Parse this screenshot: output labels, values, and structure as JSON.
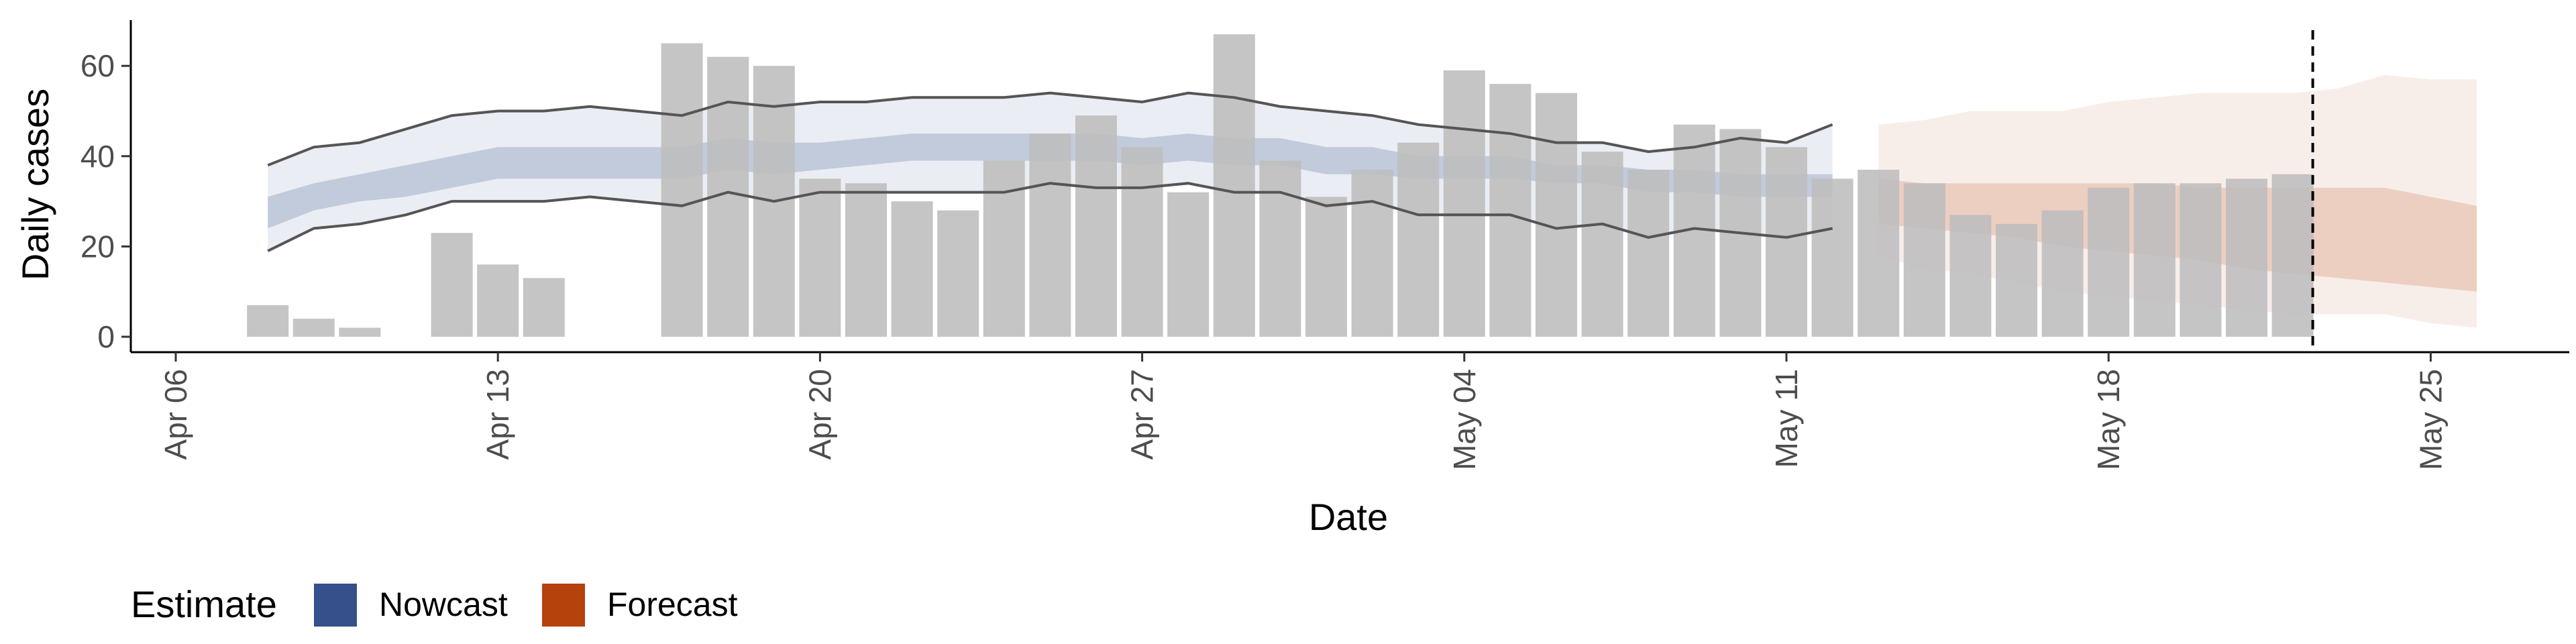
{
  "chart_data": {
    "type": "bar",
    "xlabel": "Date",
    "ylabel": "Daily cases",
    "x_ticks": [
      "Apr 06",
      "Apr 13",
      "Apr 20",
      "Apr 27",
      "May 04",
      "May 11",
      "May 18",
      "May 25"
    ],
    "y_ticks": [
      "0",
      "20",
      "40",
      "60"
    ],
    "ylim": [
      -3,
      70
    ],
    "xlim": [
      "2020-04-06",
      "2020-05-29"
    ],
    "forecast_cutoff_date": "2020-05-22",
    "legend": {
      "title": "Estimate",
      "position": "bottom-left",
      "items": [
        {
          "label": "Nowcast",
          "color": "#35508a"
        },
        {
          "label": "Forecast",
          "color": "#b5410c"
        }
      ]
    },
    "colors": {
      "bars": "#bdbdbd",
      "nowcast": "#35508a",
      "forecast": "#b5410c",
      "ci_lines": "#555555"
    },
    "bars": {
      "dates": [
        "2020-04-08",
        "2020-04-09",
        "2020-04-10",
        "2020-04-12",
        "2020-04-13",
        "2020-04-14",
        "2020-04-17",
        "2020-04-18",
        "2020-04-19",
        "2020-04-20",
        "2020-04-21",
        "2020-04-22",
        "2020-04-23",
        "2020-04-24",
        "2020-04-25",
        "2020-04-26",
        "2020-04-27",
        "2020-04-28",
        "2020-04-29",
        "2020-04-30",
        "2020-05-01",
        "2020-05-02",
        "2020-05-03",
        "2020-05-04",
        "2020-05-05",
        "2020-05-06",
        "2020-05-07",
        "2020-05-08",
        "2020-05-09",
        "2020-05-10",
        "2020-05-11",
        "2020-05-12",
        "2020-05-13",
        "2020-05-14",
        "2020-05-15",
        "2020-05-16",
        "2020-05-17",
        "2020-05-18",
        "2020-05-19",
        "2020-05-20",
        "2020-05-21",
        "2020-05-22"
      ],
      "values": [
        7,
        4,
        2,
        23,
        16,
        13,
        65,
        62,
        60,
        35,
        34,
        30,
        28,
        39,
        45,
        49,
        42,
        32,
        67,
        39,
        31,
        37,
        43,
        59,
        56,
        54,
        41,
        37,
        47,
        46,
        42,
        35,
        37,
        34,
        27,
        25,
        28,
        33,
        34,
        34,
        35,
        36
      ]
    },
    "nowcast": {
      "dates": [
        "2020-04-08",
        "2020-04-09",
        "2020-04-10",
        "2020-04-11",
        "2020-04-12",
        "2020-04-13",
        "2020-04-14",
        "2020-04-15",
        "2020-04-16",
        "2020-04-17",
        "2020-04-18",
        "2020-04-19",
        "2020-04-20",
        "2020-04-21",
        "2020-04-22",
        "2020-04-23",
        "2020-04-24",
        "2020-04-25",
        "2020-04-26",
        "2020-04-27",
        "2020-04-28",
        "2020-04-29",
        "2020-04-30",
        "2020-05-01",
        "2020-05-02",
        "2020-05-03",
        "2020-05-04",
        "2020-05-05",
        "2020-05-06",
        "2020-05-07",
        "2020-05-08",
        "2020-05-09",
        "2020-05-10",
        "2020-05-11",
        "2020-05-12"
      ],
      "lower90": [
        19,
        24,
        25,
        27,
        30,
        30,
        30,
        31,
        30,
        29,
        32,
        30,
        32,
        32,
        32,
        32,
        32,
        34,
        33,
        33,
        34,
        32,
        32,
        29,
        30,
        27,
        27,
        27,
        24,
        25,
        22,
        24,
        23,
        22,
        24
      ],
      "lower50": [
        24,
        28,
        30,
        31,
        33,
        35,
        35,
        35,
        35,
        35,
        37,
        36,
        37,
        38,
        39,
        39,
        39,
        39,
        39,
        38,
        39,
        38,
        38,
        36,
        36,
        35,
        35,
        35,
        34,
        34,
        32,
        32,
        31,
        31,
        31
      ],
      "upper50": [
        31,
        34,
        36,
        38,
        40,
        42,
        42,
        42,
        42,
        42,
        44,
        43,
        43,
        44,
        45,
        45,
        45,
        45,
        45,
        44,
        45,
        44,
        44,
        42,
        42,
        40,
        40,
        40,
        38,
        38,
        37,
        37,
        36,
        36,
        36
      ],
      "upper90": [
        38,
        42,
        43,
        46,
        49,
        50,
        50,
        51,
        50,
        49,
        52,
        51,
        52,
        52,
        53,
        53,
        53,
        54,
        53,
        52,
        54,
        53,
        51,
        50,
        49,
        47,
        46,
        45,
        43,
        43,
        41,
        42,
        44,
        43,
        47
      ]
    },
    "forecast": {
      "dates": [
        "2020-05-13",
        "2020-05-14",
        "2020-05-15",
        "2020-05-16",
        "2020-05-17",
        "2020-05-18",
        "2020-05-19",
        "2020-05-20",
        "2020-05-21",
        "2020-05-22",
        "2020-05-23",
        "2020-05-24",
        "2020-05-25",
        "2020-05-26"
      ],
      "lower90": [
        18,
        15,
        14,
        12,
        10,
        9,
        8,
        7,
        6,
        5,
        5,
        5,
        3,
        2
      ],
      "lower50": [
        25,
        24,
        23,
        22,
        20,
        19,
        18,
        17,
        15,
        14,
        13,
        12,
        11,
        10
      ],
      "upper50": [
        35,
        34,
        34,
        34,
        34,
        34,
        34,
        33,
        33,
        33,
        33,
        33,
        31,
        29
      ],
      "upper90": [
        47,
        48,
        50,
        50,
        50,
        52,
        53,
        54,
        54,
        54,
        55,
        58,
        57,
        57
      ]
    }
  }
}
